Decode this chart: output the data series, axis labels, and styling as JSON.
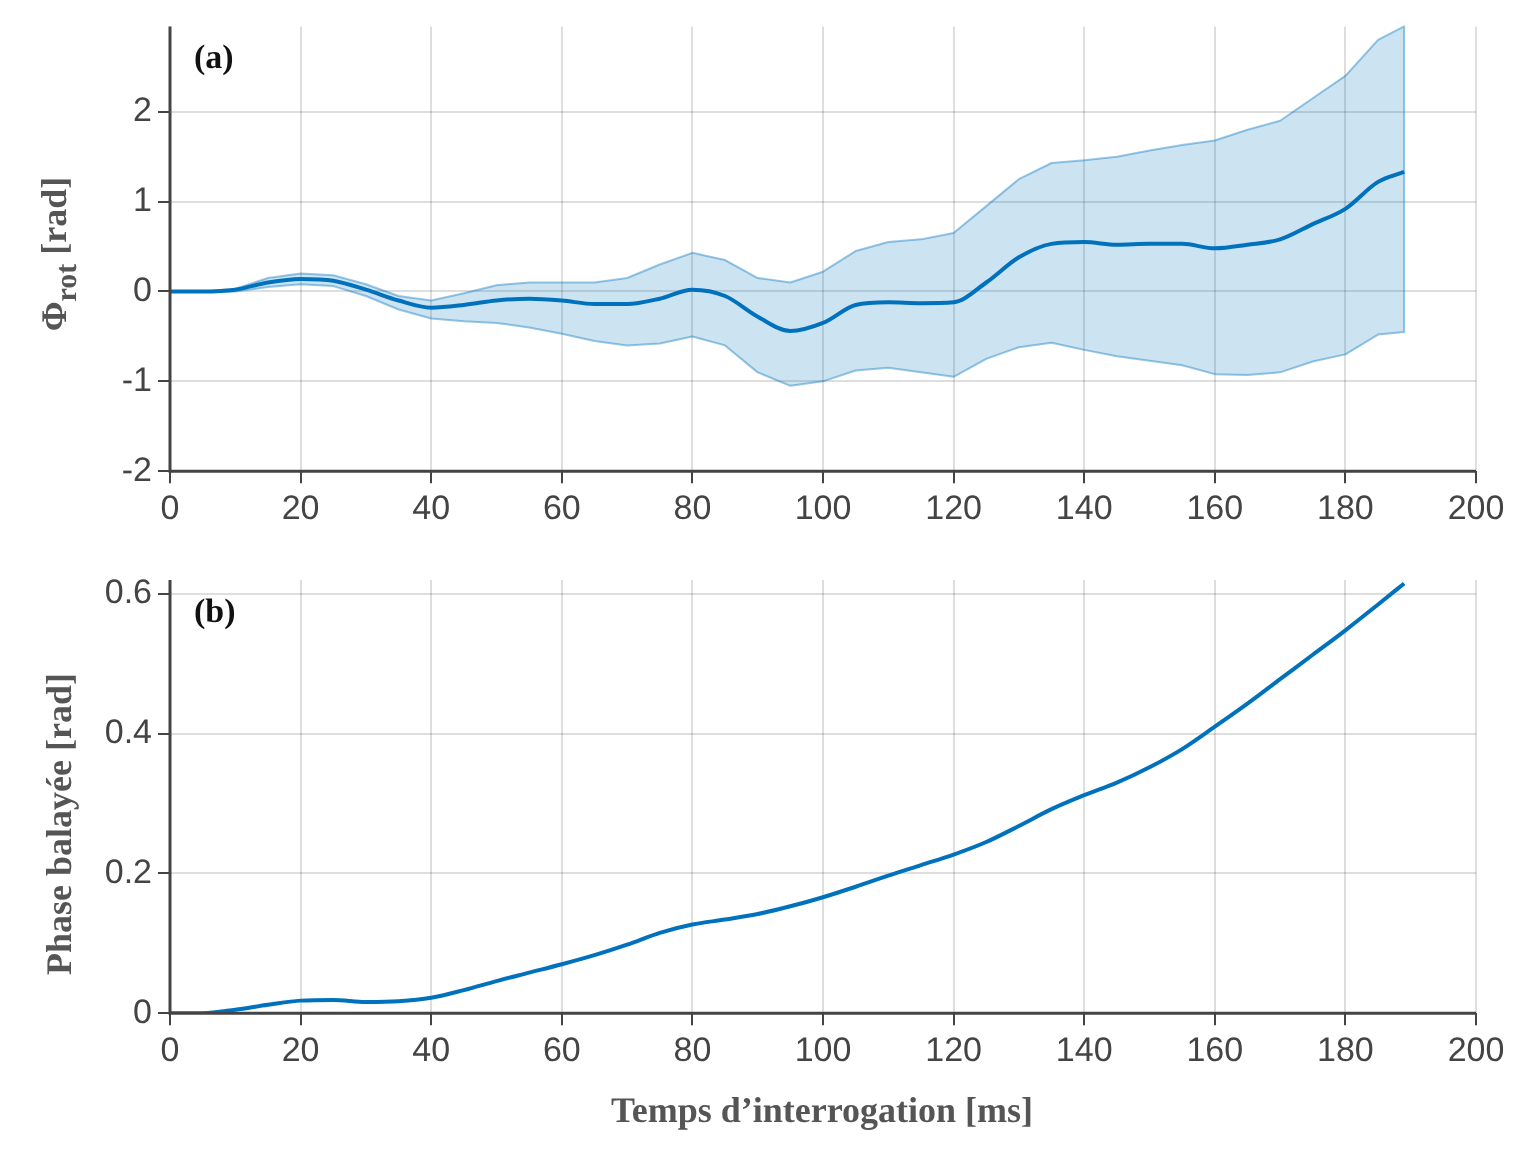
{
  "chart_data": [
    {
      "type": "line",
      "ylabel": "Φ$_{rot}$ [rad]",
      "annotations": [
        "(a)"
      ],
      "xlim": [
        0,
        200
      ],
      "xticks": [
        0,
        20,
        40,
        60,
        80,
        100,
        120,
        140,
        160,
        180,
        200
      ],
      "ylim": [
        -2,
        2.95
      ],
      "yticks": [
        -2,
        -1,
        0,
        1,
        2
      ],
      "grid": true,
      "legend": false,
      "marker": "none",
      "line_style": "solid",
      "x": [
        0,
        5,
        10,
        15,
        20,
        25,
        30,
        35,
        40,
        45,
        50,
        55,
        60,
        65,
        70,
        75,
        80,
        85,
        90,
        95,
        100,
        105,
        110,
        115,
        120,
        125,
        130,
        135,
        140,
        145,
        150,
        155,
        160,
        165,
        170,
        175,
        180,
        185,
        189
      ],
      "series": [
        {
          "color": "#0072bd",
          "values": [
            0,
            0,
            0.02,
            0.1,
            0.14,
            0.12,
            0.02,
            -0.1,
            -0.18,
            -0.15,
            -0.1,
            -0.08,
            -0.1,
            -0.14,
            -0.14,
            -0.08,
            0.02,
            -0.05,
            -0.28,
            -0.44,
            -0.35,
            -0.15,
            -0.12,
            -0.13,
            -0.12,
            0.1,
            0.38,
            0.53,
            0.55,
            0.52,
            0.53,
            0.53,
            0.48,
            0.52,
            0.58,
            0.75,
            0.92,
            1.22,
            1.33
          ],
          "upper": [
            0,
            0,
            0.03,
            0.15,
            0.2,
            0.18,
            0.08,
            -0.05,
            -0.1,
            -0.02,
            0.07,
            0.1,
            0.1,
            0.1,
            0.15,
            0.3,
            0.43,
            0.35,
            0.15,
            0.1,
            0.22,
            0.45,
            0.55,
            0.58,
            0.65,
            0.95,
            1.25,
            1.43,
            1.46,
            1.5,
            1.57,
            1.63,
            1.68,
            1.8,
            1.9,
            2.15,
            2.4,
            2.8,
            2.95
          ],
          "lower": [
            0,
            0,
            0,
            0.05,
            0.08,
            0.06,
            -0.05,
            -0.2,
            -0.3,
            -0.33,
            -0.35,
            -0.4,
            -0.47,
            -0.55,
            -0.6,
            -0.58,
            -0.5,
            -0.6,
            -0.9,
            -1.05,
            -1,
            -0.88,
            -0.85,
            -0.9,
            -0.95,
            -0.75,
            -0.62,
            -0.57,
            -0.65,
            -0.72,
            -0.77,
            -0.82,
            -0.92,
            -0.93,
            -0.9,
            -0.78,
            -0.7,
            -0.48,
            -0.45
          ]
        }
      ]
    },
    {
      "type": "line",
      "xlabel": "Temps d’interrogation [ms]",
      "ylabel": "Phase balayée [rad]",
      "annotations": [
        "(b)"
      ],
      "xlim": [
        0,
        200
      ],
      "xticks": [
        0,
        20,
        40,
        60,
        80,
        100,
        120,
        140,
        160,
        180,
        200
      ],
      "ylim": [
        0,
        0.62
      ],
      "yticks": [
        0,
        0.2,
        0.4,
        0.6
      ],
      "grid": true,
      "legend": false,
      "marker": "none",
      "line_style": "solid",
      "x": [
        0,
        5,
        10,
        15,
        20,
        25,
        30,
        35,
        40,
        45,
        50,
        55,
        60,
        65,
        70,
        75,
        80,
        85,
        90,
        95,
        100,
        105,
        110,
        115,
        120,
        125,
        130,
        135,
        140,
        145,
        150,
        155,
        160,
        165,
        170,
        175,
        180,
        185,
        189
      ],
      "series": [
        {
          "color": "#0072bd",
          "values": [
            0,
            0,
            0.005,
            0.012,
            0.018,
            0.019,
            0.016,
            0.017,
            0.022,
            0.033,
            0.046,
            0.058,
            0.07,
            0.083,
            0.098,
            0.115,
            0.127,
            0.134,
            0.142,
            0.153,
            0.166,
            0.181,
            0.197,
            0.212,
            0.227,
            0.245,
            0.268,
            0.292,
            0.312,
            0.33,
            0.352,
            0.378,
            0.41,
            0.443,
            0.478,
            0.513,
            0.548,
            0.585,
            0.615
          ]
        }
      ]
    }
  ]
}
